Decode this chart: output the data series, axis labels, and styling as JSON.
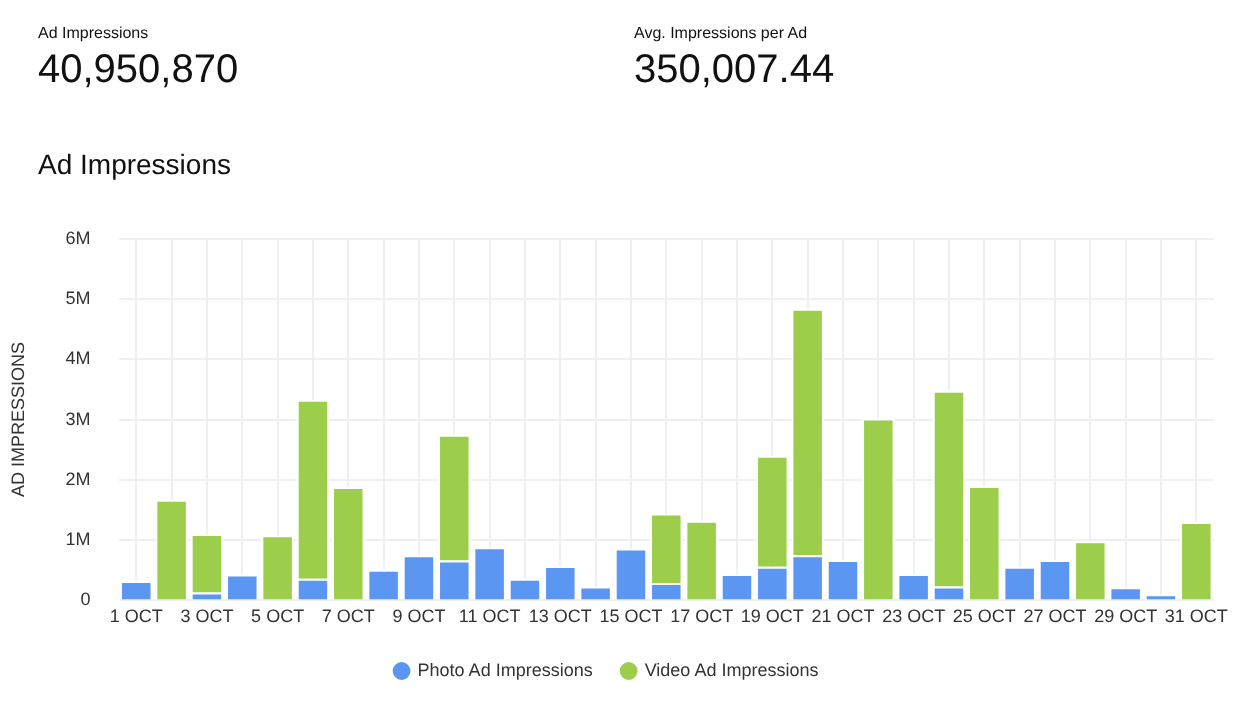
{
  "chart_data": {
    "type": "bar",
    "title": "Ad Impressions",
    "ylabel": "AD IMPRESSIONS",
    "annotations": [
      "Ad Impressions",
      "40,950,870",
      "Avg. Impressions per Ad",
      "350,007.44"
    ],
    "categories": [
      "1 OCT",
      null,
      "3 OCT",
      null,
      "5 OCT",
      null,
      "7 OCT",
      null,
      "9 OCT",
      null,
      "11 OCT",
      null,
      "13 OCT",
      null,
      "15 OCT",
      null,
      "17 OCT",
      null,
      "19 OCT",
      null,
      "21 OCT",
      null,
      "23 OCT",
      null,
      "25 OCT",
      null,
      "27 OCT",
      null,
      "29 OCT",
      null,
      "31 OCT"
    ],
    "stacked": true,
    "series": [
      {
        "name": "Photo Ad Impressions",
        "color": "#5b97f2",
        "values": [
          320000,
          null,
          130000,
          430000,
          null,
          360000,
          null,
          510000,
          750000,
          660000,
          880000,
          360000,
          570000,
          230000,
          860000,
          290000,
          null,
          440000,
          560000,
          750000,
          670000,
          null,
          440000,
          230000,
          null,
          560000,
          670000,
          null,
          220000,
          100000,
          null
        ]
      },
      {
        "name": "Video Ad Impressions",
        "color": "#9ccd4b",
        "values": [
          null,
          1670000,
          970000,
          null,
          1080000,
          2970000,
          1880000,
          null,
          null,
          2090000,
          null,
          null,
          null,
          null,
          null,
          1150000,
          1320000,
          null,
          1840000,
          4090000,
          null,
          3020000,
          null,
          3250000,
          1900000,
          null,
          null,
          980000,
          null,
          null,
          1300000
        ]
      }
    ],
    "ylim": [
      0,
      6000000
    ],
    "yticks": [
      0,
      {
        "value": 1000000,
        "label": "1M"
      },
      {
        "value": 2000000,
        "label": "2M"
      },
      {
        "value": 3000000,
        "label": "3M"
      },
      {
        "value": 4000000,
        "label": "4M"
      },
      {
        "value": 5000000,
        "label": "5M"
      },
      {
        "value": 6000000,
        "label": "6M"
      }
    ],
    "grid": true,
    "legend": "bottom"
  }
}
